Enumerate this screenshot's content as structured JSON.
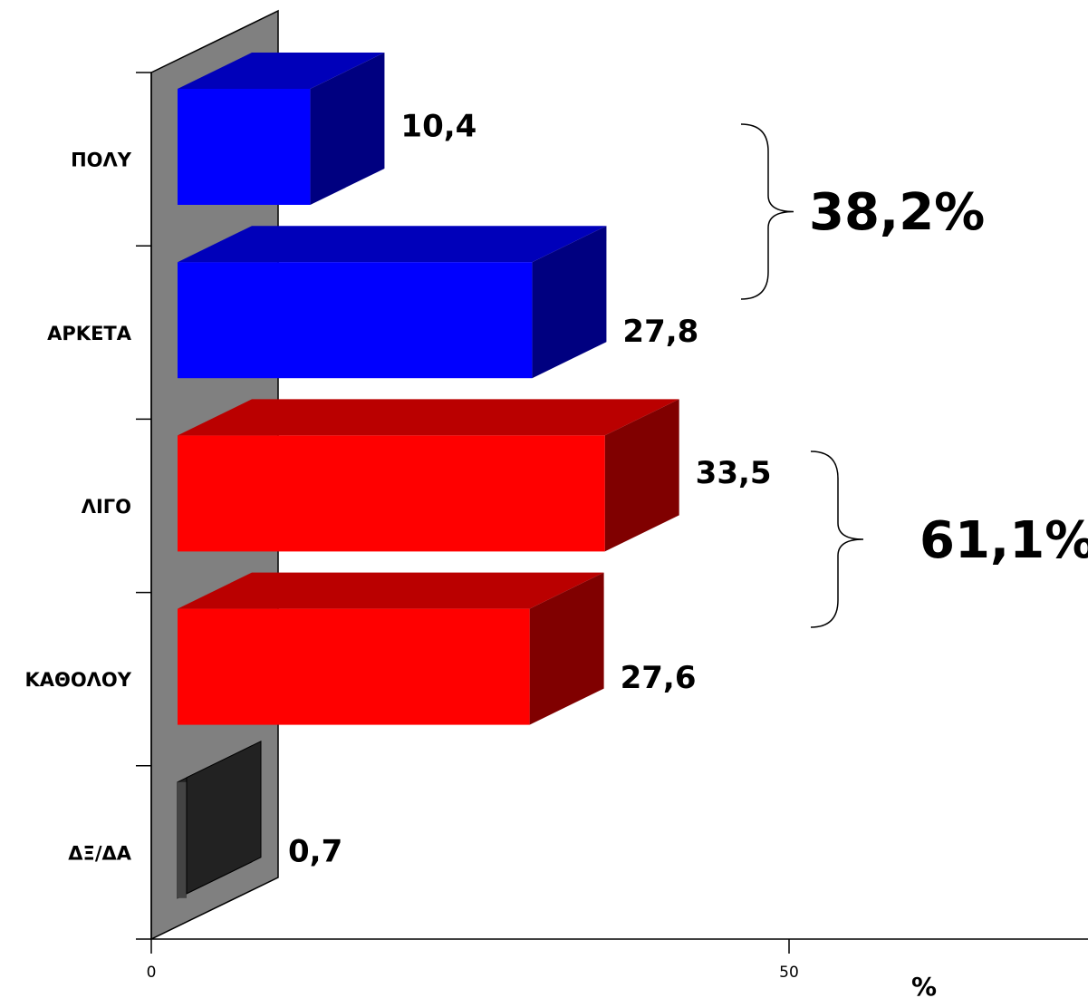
{
  "chart_data": {
    "type": "bar",
    "orientation": "horizontal",
    "categories": [
      "ΠΟΛΥ",
      "ΑΡΚΕΤΑ",
      "ΛΙΓΟ",
      "ΚΑΘΟΛΟΥ",
      "ΔΞ/ΔΑ"
    ],
    "values": [
      10.4,
      27.8,
      33.5,
      27.6,
      0.7
    ],
    "value_labels": [
      "10,4",
      "27,8",
      "33,5",
      "27,6",
      "0,7"
    ],
    "bar_colors": [
      "#0000ff",
      "#0000ff",
      "#ff0000",
      "#ff0000",
      "#222222"
    ],
    "xlim": [
      0,
      50
    ],
    "x_ticks": [
      "0",
      "50"
    ],
    "xlabel": "%",
    "groups": [
      {
        "label": "38,2%",
        "from": 0,
        "to": 1
      },
      {
        "label": "61,1%",
        "from": 2,
        "to": 3
      }
    ],
    "grid": false,
    "legend": "none"
  }
}
